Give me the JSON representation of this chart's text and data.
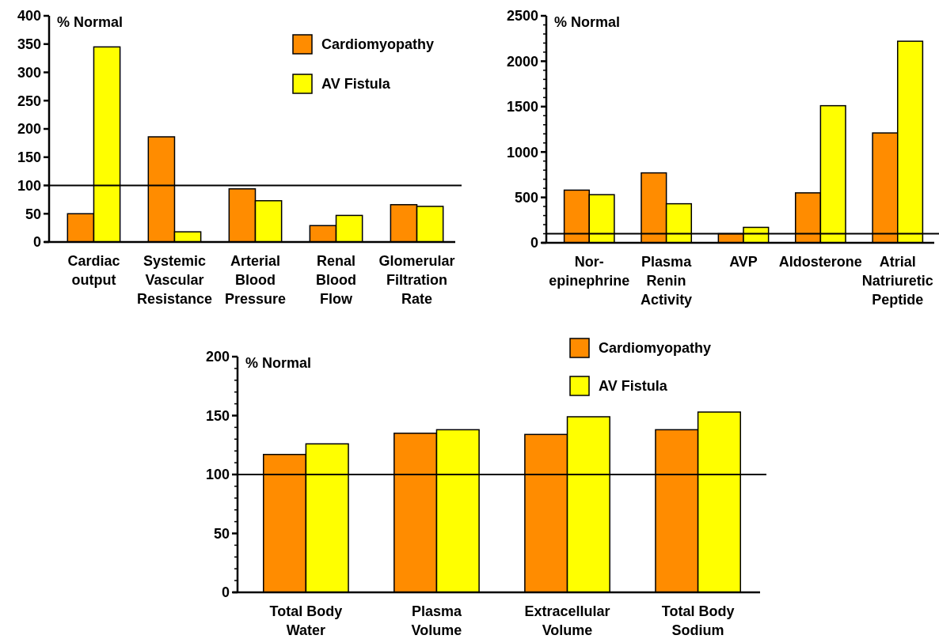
{
  "chart_data": [
    {
      "type": "bar",
      "ylabel": "% Normal",
      "categories": [
        "Cardiac output",
        "Systemic Vascular Resistance",
        "Arterial Blood Pressure",
        "Renal Blood Flow",
        "Glomerular Filtration Rate"
      ],
      "series": [
        {
          "name": "Cardiomyopathy",
          "color": "#ff8c00",
          "values": [
            50,
            186,
            94,
            29,
            66
          ]
        },
        {
          "name": "AV Fistula",
          "color": "#ffff00",
          "values": [
            345,
            18,
            73,
            47,
            63
          ]
        }
      ],
      "ylim": [
        0,
        400
      ],
      "yticks": [
        0,
        50,
        100,
        150,
        200,
        250,
        300,
        350,
        400
      ],
      "ref_lines": [
        {
          "axis": "y",
          "value": 100
        }
      ],
      "legend": "top right"
    },
    {
      "type": "bar",
      "ylabel": "% Normal",
      "categories": [
        "Nor-epinephrine",
        "Plasma Renin Activity",
        "AVP",
        "Aldosterone",
        "Atrial Natriuretic Peptide"
      ],
      "series": [
        {
          "color": "#ff8c00",
          "values": [
            580,
            770,
            100,
            550,
            1210
          ]
        },
        {
          "color": "#ffff00",
          "values": [
            530,
            430,
            170,
            1510,
            2220
          ]
        }
      ],
      "ylim": [
        0,
        2500
      ],
      "yticks": [
        0,
        {
          "value": 100,
          "label": null
        },
        {
          "value": 200,
          "label": null
        },
        {
          "value": 300,
          "label": null
        },
        {
          "value": 400,
          "label": null
        },
        500,
        {
          "value": 600,
          "label": null
        },
        {
          "value": 700,
          "label": null
        },
        {
          "value": 800,
          "label": null
        },
        {
          "value": 900,
          "label": null
        },
        1000,
        {
          "value": 1100,
          "label": null
        },
        {
          "value": 1200,
          "label": null
        },
        {
          "value": 1300,
          "label": null
        },
        {
          "value": 1400,
          "label": null
        },
        1500,
        {
          "value": 1600,
          "label": null
        },
        {
          "value": 1700,
          "label": null
        },
        {
          "value": 1800,
          "label": null
        },
        {
          "value": 1900,
          "label": null
        },
        2000,
        {
          "value": 2100,
          "label": null
        },
        {
          "value": 2200,
          "label": null
        },
        {
          "value": 2300,
          "label": null
        },
        {
          "value": 2400,
          "label": null
        },
        2500
      ],
      "ref_lines": [
        {
          "axis": "y",
          "value": 100
        }
      ]
    },
    {
      "type": "bar",
      "ylabel": "% Normal",
      "categories": [
        "Total Body Water",
        "Plasma Volume",
        "Extracellular Volume",
        "Total Body Sodium"
      ],
      "series": [
        {
          "name": "Cardiomyopathy",
          "color": "#ff8c00",
          "values": [
            117,
            135,
            134,
            138
          ]
        },
        {
          "name": "AV Fistula",
          "color": "#ffff00",
          "values": [
            126,
            138,
            149,
            153
          ]
        }
      ],
      "ylim": [
        0,
        200
      ],
      "yticks": [
        0,
        {
          "value": 10,
          "label": null
        },
        {
          "value": 20,
          "label": null
        },
        {
          "value": 30,
          "label": null
        },
        {
          "value": 40,
          "label": null
        },
        50,
        {
          "value": 60,
          "label": null
        },
        {
          "value": 70,
          "label": null
        },
        {
          "value": 80,
          "label": null
        },
        {
          "value": 90,
          "label": null
        },
        100,
        {
          "value": 110,
          "label": null
        },
        {
          "value": 120,
          "label": null
        },
        {
          "value": 130,
          "label": null
        },
        {
          "value": 140,
          "label": null
        },
        150,
        {
          "value": 160,
          "label": null
        },
        {
          "value": 170,
          "label": null
        },
        {
          "value": 180,
          "label": null
        },
        {
          "value": 190,
          "label": null
        },
        200
      ],
      "ref_lines": [
        {
          "axis": "y",
          "value": 100
        }
      ],
      "legend": "top right"
    }
  ]
}
